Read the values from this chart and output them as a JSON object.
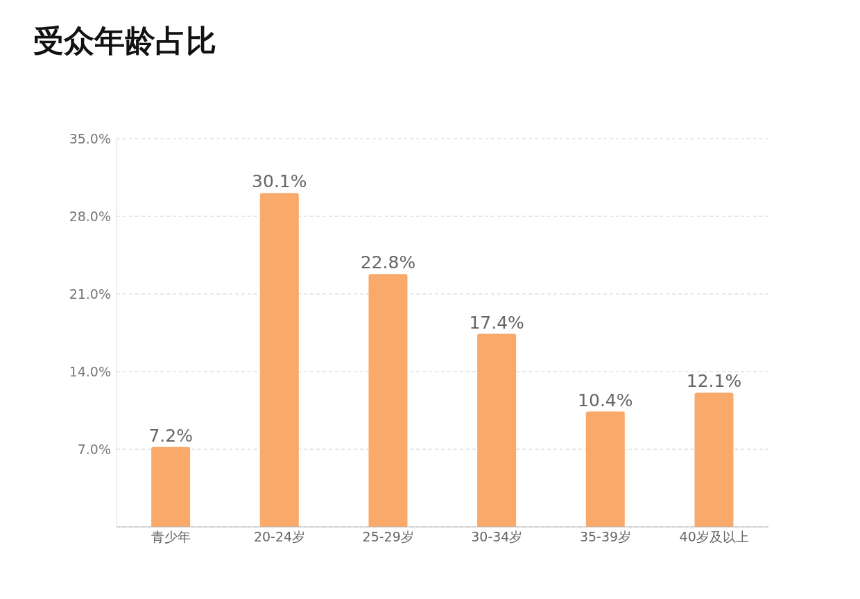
{
  "chart_data": {
    "type": "bar",
    "title": "受众年龄占比",
    "categories": [
      "青少年",
      "20-24岁",
      "25-29岁",
      "30-34岁",
      "35-39岁",
      "40岁及以上"
    ],
    "values": [
      7.2,
      30.1,
      22.8,
      17.4,
      10.4,
      12.1
    ],
    "value_labels": [
      "7.2%",
      "30.1%",
      "22.8%",
      "17.4%",
      "10.4%",
      "12.1%"
    ],
    "color": "#f9a96a",
    "ylim": [
      0,
      35
    ],
    "yticks": [
      {
        "value": 0,
        "label": null
      },
      {
        "value": 7,
        "label": "7.0%"
      },
      {
        "value": 14,
        "label": "14.0%"
      },
      {
        "value": 21,
        "label": "21.0%"
      },
      {
        "value": 28,
        "label": "28.0%"
      },
      {
        "value": 35,
        "label": "35.0%"
      }
    ],
    "grid": "y"
  }
}
